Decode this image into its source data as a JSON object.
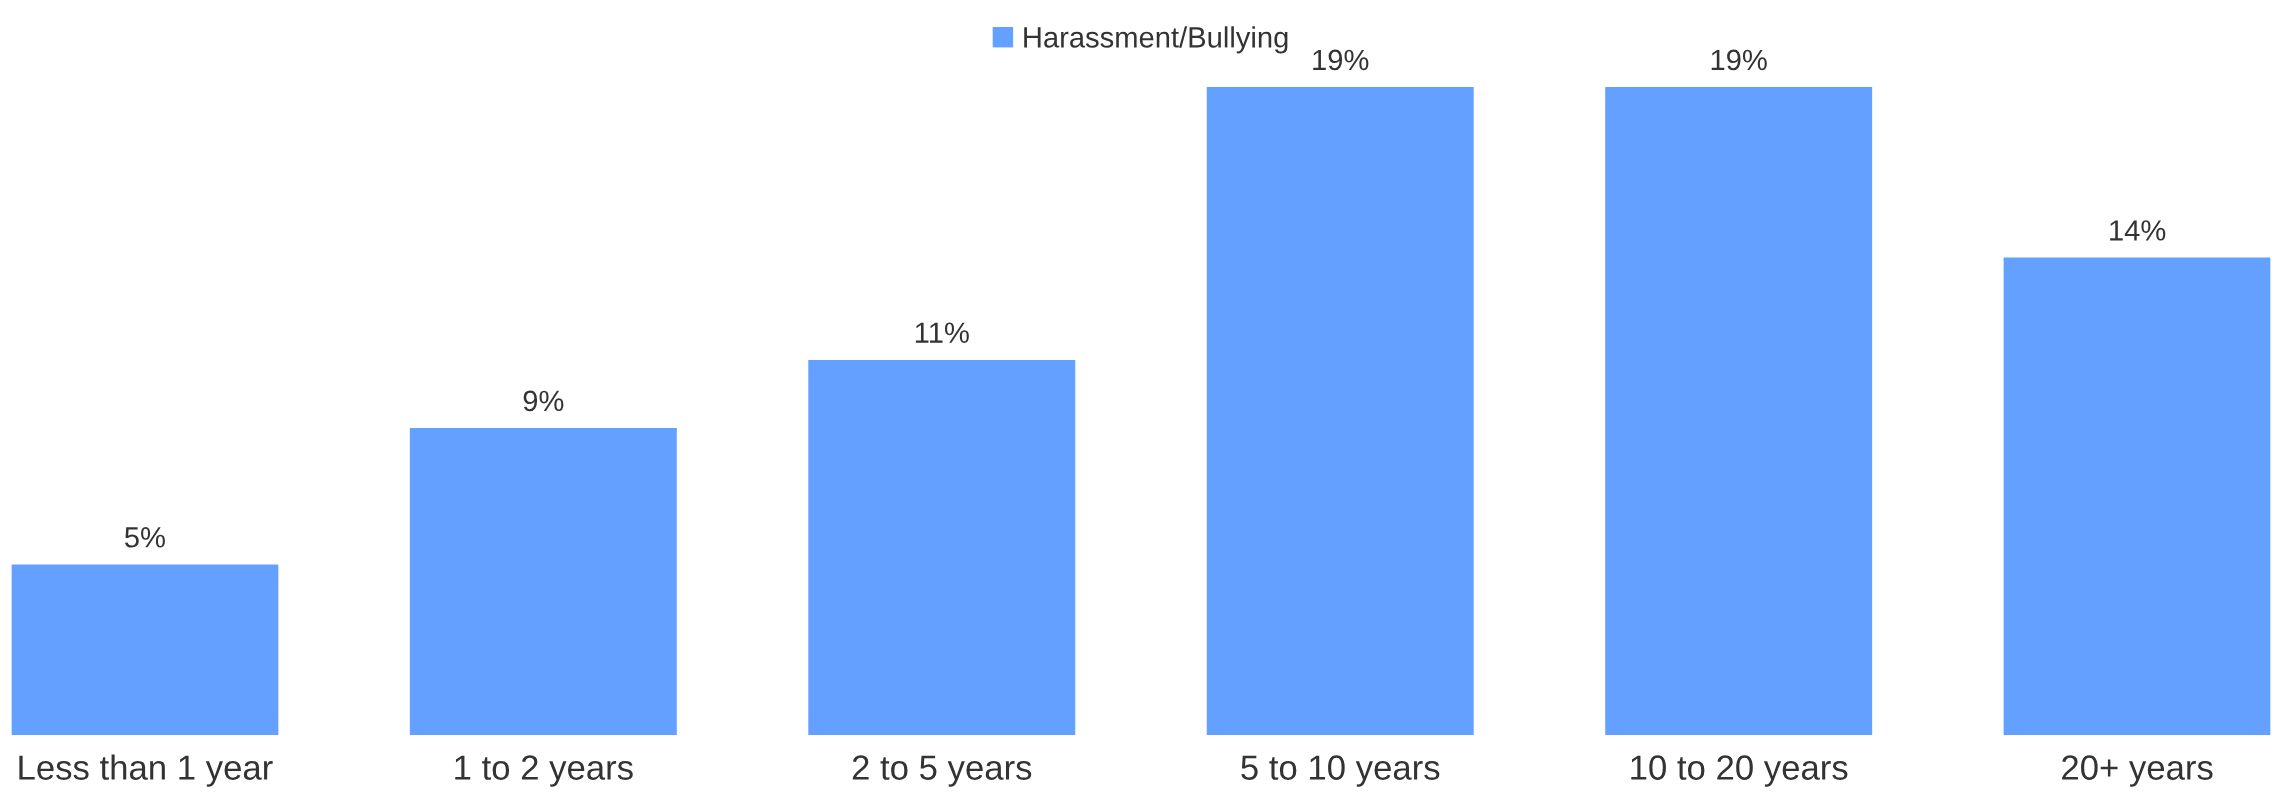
{
  "chart_data": {
    "type": "bar",
    "categories": [
      "Less than 1 year",
      "1 to 2 years",
      "2 to 5 years",
      "5 to 10 years",
      "10 to 20 years",
      "20+ years"
    ],
    "series": [
      {
        "name": "Harassment/Bullying",
        "color": "#64a0ff",
        "values": [
          5,
          9,
          11,
          19,
          19,
          14
        ],
        "value_labels": [
          "5%",
          "9%",
          "11%",
          "19%",
          "19%",
          "14%"
        ]
      }
    ],
    "tick_labels": "x",
    "legend": "top",
    "grid": false
  }
}
